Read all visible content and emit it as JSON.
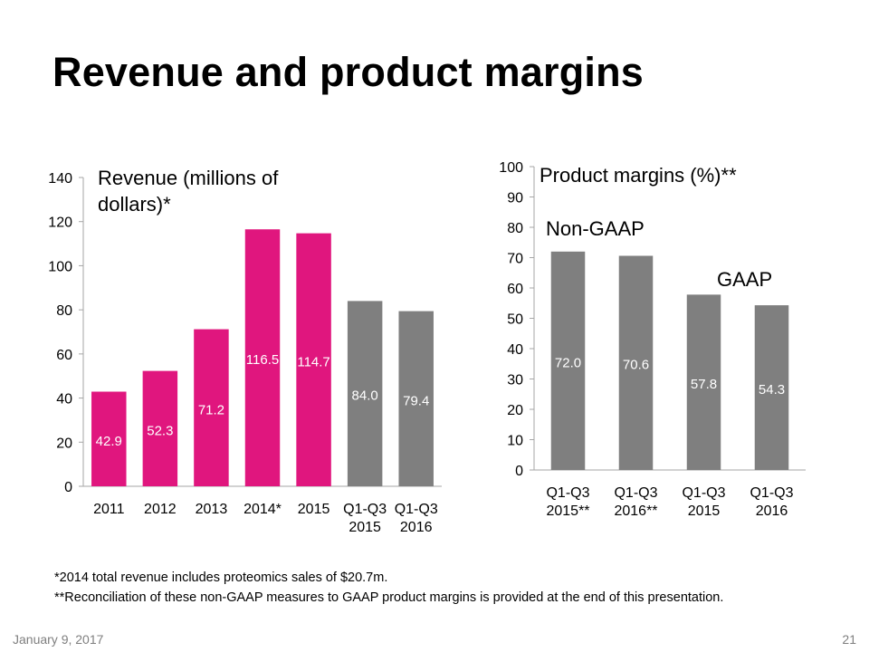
{
  "slide": {
    "title": "Revenue and product margins",
    "footnotes": [
      "*2014 total revenue includes proteomics sales of $20.7m.",
      "**Reconciliation of these non-GAAP measures to GAAP product margins is provided at the end of this presentation."
    ],
    "footer_date": "January 9, 2017",
    "page_number": "21"
  },
  "colors": {
    "magenta": "#e0167e",
    "gray": "#7f7f7f",
    "axis": "#a6a6a6"
  },
  "chart_data": [
    {
      "type": "bar",
      "title": "Revenue (millions of dollars)*",
      "title_lines": [
        "Revenue (millions of",
        "dollars)*"
      ],
      "categories": [
        [
          "2011"
        ],
        [
          "2012"
        ],
        [
          "2013"
        ],
        [
          "2014*"
        ],
        [
          "2015"
        ],
        [
          "Q1-Q3",
          "2015"
        ],
        [
          "Q1-Q3",
          "2016"
        ]
      ],
      "values": [
        42.9,
        52.3,
        71.2,
        116.5,
        114.7,
        84.0,
        79.4
      ],
      "value_labels": [
        "42.9",
        "52.3",
        "71.2",
        "116.5",
        "114.7",
        "84.0",
        "79.4"
      ],
      "bar_colors": [
        "magenta",
        "magenta",
        "magenta",
        "magenta",
        "magenta",
        "gray",
        "gray"
      ],
      "ylim": [
        0,
        140
      ],
      "yticks": [
        0,
        20,
        40,
        60,
        80,
        100,
        120,
        140
      ],
      "xlabel": "",
      "ylabel": "",
      "grid": false
    },
    {
      "type": "bar",
      "title": "Product margins (%)**",
      "title_lines": [
        "Product margins (%)**"
      ],
      "categories": [
        [
          "Q1-Q3",
          "2015**"
        ],
        [
          "Q1-Q3",
          "2016**"
        ],
        [
          "Q1-Q3",
          "2015"
        ],
        [
          "Q1-Q3",
          "2016"
        ]
      ],
      "values": [
        72.0,
        70.6,
        57.8,
        54.3
      ],
      "value_labels": [
        "72.0",
        "70.6",
        "57.8",
        "54.3"
      ],
      "bar_colors": [
        "gray",
        "gray",
        "gray",
        "gray"
      ],
      "ylim": [
        0,
        100
      ],
      "yticks": [
        0,
        10,
        20,
        30,
        40,
        50,
        60,
        70,
        80,
        90,
        100
      ],
      "annotations": [
        "Non-GAAP",
        "GAAP"
      ],
      "xlabel": "",
      "ylabel": "",
      "grid": false
    }
  ]
}
